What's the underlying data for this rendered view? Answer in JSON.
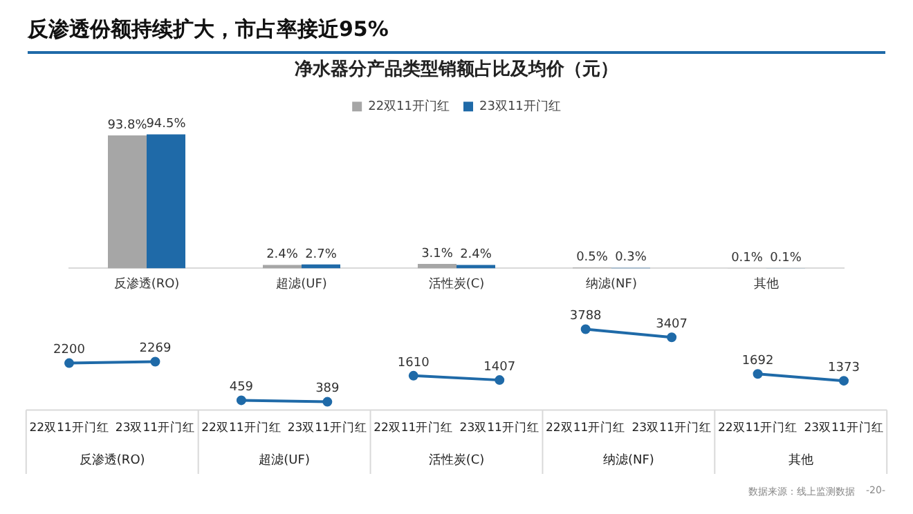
{
  "chart_data": [
    {
      "type": "bar",
      "title": "反渗透份额持续扩大，市占率接近95%",
      "subtitle": "净水器分产品类型销额占比及均价（元）",
      "categories": [
        "反渗透(RO)",
        "超滤(UF)",
        "活性炭(C)",
        "纳滤(NF)",
        "其他"
      ],
      "series": [
        {
          "name": "22双11开门红",
          "color": "#a6a6a6",
          "values": [
            93.8,
            2.4,
            3.1,
            0.5,
            0.1
          ],
          "value_labels": [
            "93.8%",
            "2.4%",
            "3.1%",
            "0.5%",
            "0.1%"
          ]
        },
        {
          "name": "23双11开门红",
          "color": "#1f6aa8",
          "values": [
            94.5,
            2.7,
            2.4,
            0.3,
            0.1
          ],
          "value_labels": [
            "94.5%",
            "2.7%",
            "2.4%",
            "0.3%",
            "0.1%"
          ]
        }
      ],
      "legend": "top",
      "grid": false
    },
    {
      "type": "line",
      "categories": [
        "22双11开门红",
        "23双11开门红",
        "22双11开门红",
        "23双11开门红",
        "22双11开门红",
        "23双11开门红",
        "22双11开门红",
        "23双11开门红",
        "22双11开门红",
        "23双11开门红"
      ],
      "series": [
        {
          "color": "#1f6aa8",
          "values": [
            2200,
            2269,
            null,
            null,
            null,
            null,
            null,
            null,
            null,
            null
          ]
        },
        {
          "color": "#1f6aa8",
          "values": [
            null,
            null,
            459,
            389,
            null,
            null,
            null,
            null,
            null,
            null
          ]
        },
        {
          "color": "#1f6aa8",
          "values": [
            null,
            null,
            null,
            null,
            1610,
            1407,
            null,
            null,
            null,
            null
          ]
        },
        {
          "color": "#1f6aa8",
          "values": [
            null,
            null,
            null,
            null,
            null,
            null,
            3788,
            3407,
            null,
            null
          ]
        },
        {
          "color": "#1f6aa8",
          "values": [
            null,
            null,
            null,
            null,
            null,
            null,
            null,
            null,
            1692,
            1373
          ]
        }
      ],
      "data_labels": true,
      "marker": "circle",
      "tick_labels": "x",
      "grid": false,
      "annotations": [
        "反渗透(RO)",
        "超滤(UF)",
        "活性炭(C)",
        "纳滤(NF)",
        "其他",
        "数据来源：线上监测数据",
        "-20-"
      ]
    }
  ]
}
